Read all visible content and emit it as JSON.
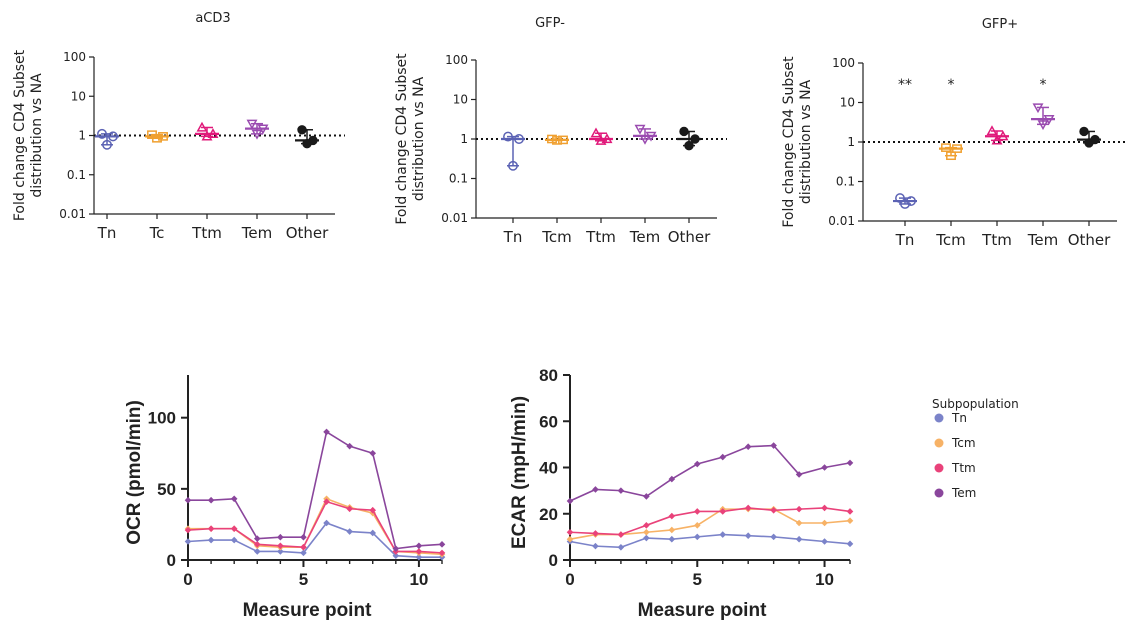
{
  "top_panels": [
    {
      "title": "aCD3",
      "ylabel_line1": "Fold change CD4 Subset",
      "ylabel_line2": "distribution vs NA",
      "yticks": [
        "100",
        "10",
        "1",
        "0.1",
        "0.01"
      ],
      "categories": [
        "Tn",
        "Tc",
        "Ttm",
        "Tem",
        "Other"
      ],
      "stars": [
        "",
        "",
        "",
        "",
        ""
      ]
    },
    {
      "title": "GFP-",
      "ylabel_line1": "Fold change CD4 Subset",
      "ylabel_line2": "distribution vs NA",
      "yticks": [
        "100",
        "10",
        "1",
        "0.1",
        "0.01"
      ],
      "categories": [
        "Tn",
        "Tcm",
        "Ttm",
        "Tem",
        "Other"
      ],
      "stars": [
        "",
        "",
        "",
        "",
        ""
      ]
    },
    {
      "title": "GFP+",
      "ylabel_line1": "Fold change CD4 Subset",
      "ylabel_line2": "distribution vs NA",
      "yticks": [
        "100",
        "10",
        "1",
        "0.1",
        "0.01"
      ],
      "categories": [
        "Tn",
        "Tcm",
        "Ttm",
        "Tem",
        "Other"
      ],
      "stars": [
        "**",
        "*",
        "",
        "*",
        ""
      ]
    }
  ],
  "bottom_panels": [
    {
      "ylabel": "OCR (pmol/min)",
      "xlabel": "Measure point",
      "yticks": [
        "0",
        "50",
        "100"
      ],
      "xticks": [
        "0",
        "5",
        "10"
      ]
    },
    {
      "ylabel": "ECAR (mpH/min)",
      "xlabel": "Measure point",
      "yticks": [
        "0",
        "20",
        "40",
        "60",
        "80"
      ],
      "xticks": [
        "0",
        "5",
        "10"
      ]
    }
  ],
  "legend": {
    "title": "Subpopulation",
    "items": [
      "Tn",
      "Tcm",
      "Ttm",
      "Tem"
    ]
  },
  "colors": {
    "Tn": "#7b83c9",
    "Tcm": "#f7b266",
    "Ttm": "#e9427a",
    "Tem": "#8a469c",
    "Other": "#1a1a1a",
    "blue_dot": "#5b62b4",
    "pink_dot": "#e0197a",
    "purple_dot": "#9a4bb0",
    "orange_dot": "#f0a030"
  },
  "chart_data": [
    {
      "type": "scatter",
      "title": "aCD3",
      "ylabel": "Fold change CD4 Subset distribution vs NA",
      "yscale": "log",
      "ylim": [
        0.01,
        100
      ],
      "reference_line": 1,
      "categories": [
        "Tn",
        "Tc",
        "Ttm",
        "Tem",
        "Other"
      ],
      "groups": [
        {
          "category": "Tn",
          "points": [
            1.1,
            0.95,
            0.58
          ],
          "median": 0.95
        },
        {
          "category": "Tc",
          "points": [
            1.05,
            0.95,
            0.85
          ],
          "median": 0.95
        },
        {
          "category": "Ttm",
          "points": [
            1.6,
            1.1,
            0.95
          ],
          "median": 1.1
        },
        {
          "category": "Tem",
          "points": [
            2.0,
            1.5,
            1.1
          ],
          "median": 1.5
        },
        {
          "category": "Other",
          "points": [
            1.4,
            0.75,
            0.62
          ],
          "median": 0.75
        }
      ]
    },
    {
      "type": "scatter",
      "title": "GFP-",
      "ylabel": "Fold change CD4 Subset distribution vs NA",
      "yscale": "log",
      "ylim": [
        0.01,
        100
      ],
      "reference_line": 1,
      "categories": [
        "Tn",
        "Tcm",
        "Ttm",
        "Tem",
        "Other"
      ],
      "groups": [
        {
          "category": "Tn",
          "points": [
            1.15,
            1.0,
            0.21
          ],
          "median": 1.0
        },
        {
          "category": "Tcm",
          "points": [
            1.0,
            0.95,
            0.92
          ],
          "median": 0.95
        },
        {
          "category": "Ttm",
          "points": [
            1.4,
            1.0,
            0.9
          ],
          "median": 1.0
        },
        {
          "category": "Tem",
          "points": [
            1.8,
            1.2,
            1.0
          ],
          "median": 1.2
        },
        {
          "category": "Other",
          "points": [
            1.55,
            1.0,
            0.68
          ],
          "median": 1.0
        }
      ]
    },
    {
      "type": "scatter",
      "title": "GFP+",
      "ylabel": "Fold change CD4 Subset distribution vs NA",
      "yscale": "log",
      "ylim": [
        0.01,
        100
      ],
      "reference_line": 1,
      "categories": [
        "Tn",
        "Tcm",
        "Ttm",
        "Tem",
        "Other"
      ],
      "annotations": [
        "**",
        "*",
        "",
        "*",
        ""
      ],
      "groups": [
        {
          "category": "Tn",
          "points": [
            0.038,
            0.032,
            0.027
          ],
          "median": 0.032
        },
        {
          "category": "Tcm",
          "points": [
            0.72,
            0.68,
            0.45
          ],
          "median": 0.68
        },
        {
          "category": "Ttm",
          "points": [
            1.9,
            1.4,
            1.1
          ],
          "median": 1.4
        },
        {
          "category": "Tem",
          "points": [
            7.5,
            3.8,
            2.8
          ],
          "median": 3.8
        },
        {
          "category": "Other",
          "points": [
            1.85,
            1.15,
            0.95
          ],
          "median": 1.15
        }
      ]
    },
    {
      "type": "line",
      "xlabel": "Measure point",
      "ylabel": "OCR (pmol/min)",
      "xlim": [
        0,
        11
      ],
      "ylim": [
        0,
        130
      ],
      "x": [
        0,
        1,
        2,
        3,
        4,
        5,
        6,
        7,
        8,
        9,
        10,
        11
      ],
      "series": [
        {
          "name": "Tn",
          "values": [
            13,
            14,
            14,
            6,
            6,
            5,
            26,
            20,
            19,
            3,
            2,
            2
          ]
        },
        {
          "name": "Tcm",
          "values": [
            22,
            22,
            22,
            10,
            9,
            9,
            43,
            37,
            33,
            6,
            5,
            4
          ]
        },
        {
          "name": "Ttm",
          "values": [
            21,
            22,
            22,
            11,
            10,
            9,
            41,
            36,
            35,
            6,
            6,
            5
          ]
        },
        {
          "name": "Tem",
          "values": [
            42,
            42,
            43,
            15,
            16,
            16,
            90,
            80,
            75,
            8,
            10,
            11
          ]
        }
      ]
    },
    {
      "type": "line",
      "xlabel": "Measure point",
      "ylabel": "ECAR (mpH/min)",
      "xlim": [
        0,
        11
      ],
      "ylim": [
        0,
        80
      ],
      "x": [
        0,
        1,
        2,
        3,
        4,
        5,
        6,
        7,
        8,
        9,
        10,
        11
      ],
      "series": [
        {
          "name": "Tn",
          "values": [
            8,
            6,
            5.5,
            9.5,
            9,
            10,
            11,
            10.5,
            10,
            9,
            8,
            7
          ]
        },
        {
          "name": "Tcm",
          "values": [
            9,
            11,
            11,
            12,
            13,
            15,
            22,
            22,
            22,
            16,
            16,
            17
          ]
        },
        {
          "name": "Ttm",
          "values": [
            12,
            11.5,
            11,
            15,
            19,
            21,
            21,
            22.5,
            21.5,
            22,
            22.5,
            21
          ]
        },
        {
          "name": "Tem",
          "values": [
            25.5,
            30.5,
            30,
            27.5,
            35,
            41.5,
            44.5,
            49,
            49.5,
            37,
            40,
            42
          ]
        }
      ]
    }
  ]
}
